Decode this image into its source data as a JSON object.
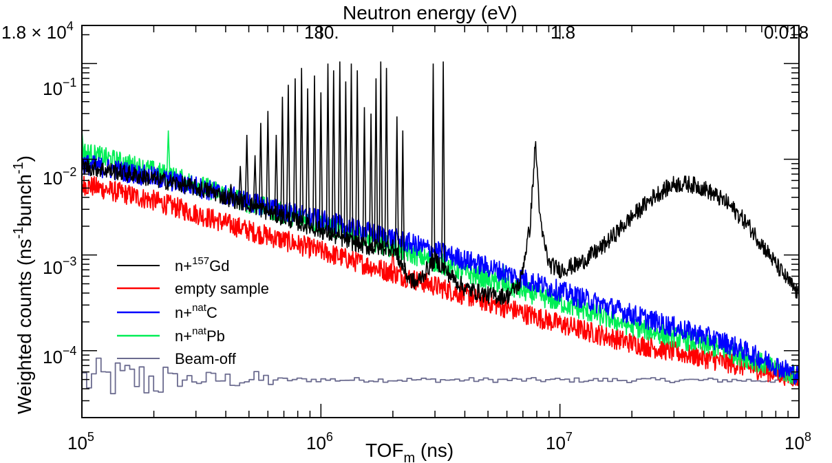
{
  "chart_data": {
    "type": "line",
    "x_scale": "log",
    "y_scale": "log",
    "xlim": [
      100000,
      100000000
    ],
    "ylim": [
      2e-05,
      0.25
    ],
    "grid": false,
    "legend_placement": "lower-left",
    "xlabel": {
      "main": "TOF",
      "sub": "m",
      "rest": " (ns)"
    },
    "ylabel": {
      "p1": "Weighted counts (ns",
      "s1": "-1",
      "p2": "bunch",
      "s2": "-1",
      "p3": ")"
    },
    "top_axis_title": "Neutron energy (eV)",
    "x_ticks": [
      {
        "value": 100000,
        "base": "10",
        "exp": "5"
      },
      {
        "value": 1000000,
        "base": "10",
        "exp": "6"
      },
      {
        "value": 10000000,
        "base": "10",
        "exp": "7"
      },
      {
        "value": 100000000,
        "base": "10",
        "exp": "8"
      }
    ],
    "y_ticks": [
      {
        "value": 0.0001,
        "base": "10",
        "exp": "−4"
      },
      {
        "value": 0.001,
        "base": "10",
        "exp": "−3"
      },
      {
        "value": 0.01,
        "base": "10",
        "exp": "−2"
      },
      {
        "value": 0.1,
        "base": "10",
        "exp": "−1"
      }
    ],
    "top_ticks": [
      {
        "energy_eV": 18000,
        "label": "1.8 × 10",
        "exp": "4"
      },
      {
        "energy_eV": 180,
        "label": "180.",
        "exp": ""
      },
      {
        "energy_eV": 1.8,
        "label": "1.8",
        "exp": ""
      },
      {
        "energy_eV": 0.018,
        "label": "0.018",
        "exp": ""
      }
    ],
    "series": [
      {
        "name": {
          "pre": "n+",
          "sup": "157",
          "post": "Gd"
        },
        "color": "#000000",
        "points": [
          [
            100000,
            0.0085
          ],
          [
            150000,
            0.0072
          ],
          [
            200000,
            0.0062
          ],
          [
            250000,
            0.0056
          ],
          [
            300000,
            0.005
          ],
          [
            350000,
            0.0046
          ],
          [
            400000,
            0.004
          ],
          [
            500000,
            0.0034
          ],
          [
            600000,
            0.0028
          ],
          [
            800000,
            0.0022
          ],
          [
            1000000,
            0.0018
          ],
          [
            1300000,
            0.0014
          ],
          [
            1600000,
            0.0012
          ],
          [
            2000000,
            0.0012
          ],
          [
            2300000,
            0.0006
          ],
          [
            2500000,
            0.0005
          ],
          [
            3000000,
            0.0009
          ],
          [
            3500000,
            0.0006
          ],
          [
            4000000,
            0.00045
          ],
          [
            5000000,
            0.00038
          ],
          [
            6000000,
            0.00037
          ],
          [
            6800000,
            0.0005
          ],
          [
            7500000,
            0.002
          ],
          [
            7900000,
            0.015
          ],
          [
            8300000,
            0.002
          ],
          [
            9000000,
            0.0008
          ],
          [
            10000000,
            0.0007
          ],
          [
            12000000,
            0.0008
          ],
          [
            15000000,
            0.0012
          ],
          [
            20000000,
            0.0025
          ],
          [
            25000000,
            0.0042
          ],
          [
            30000000,
            0.0055
          ],
          [
            35000000,
            0.0055
          ],
          [
            40000000,
            0.005
          ],
          [
            50000000,
            0.0035
          ],
          [
            60000000,
            0.0022
          ],
          [
            70000000,
            0.0013
          ],
          [
            80000000,
            0.0008
          ],
          [
            100000000,
            0.00038
          ]
        ],
        "peaks": [
          [
            420000,
            0.0055
          ],
          [
            460000,
            0.0085
          ],
          [
            490000,
            0.018
          ],
          [
            530000,
            0.011
          ],
          [
            560000,
            0.024
          ],
          [
            600000,
            0.032
          ],
          [
            650000,
            0.018
          ],
          [
            690000,
            0.045
          ],
          [
            730000,
            0.06
          ],
          [
            780000,
            0.07
          ],
          [
            830000,
            0.09
          ],
          [
            880000,
            0.055
          ],
          [
            940000,
            0.075
          ],
          [
            1000000,
            0.05
          ],
          [
            1070000,
            0.1
          ],
          [
            1130000,
            0.085
          ],
          [
            1200000,
            0.105
          ],
          [
            1270000,
            0.065
          ],
          [
            1340000,
            0.1
          ],
          [
            1420000,
            0.085
          ],
          [
            1520000,
            0.035
          ],
          [
            1620000,
            0.03
          ],
          [
            1700000,
            0.07
          ],
          [
            1780000,
            0.105
          ],
          [
            1880000,
            0.09
          ],
          [
            2080000,
            0.028
          ],
          [
            2200000,
            0.02
          ],
          [
            2950000,
            0.1
          ],
          [
            3250000,
            0.105
          ]
        ]
      },
      {
        "name": {
          "pre": "empty sample",
          "sup": "",
          "post": ""
        },
        "color": "#ff0000",
        "points": [
          [
            100000,
            0.0055
          ],
          [
            200000,
            0.0037
          ],
          [
            300000,
            0.0027
          ],
          [
            500000,
            0.0018
          ],
          [
            1000000,
            0.0011
          ],
          [
            2000000,
            0.00065
          ],
          [
            5000000,
            0.00032
          ],
          [
            10000000,
            0.00019
          ],
          [
            20000000,
            0.00012
          ],
          [
            50000000,
            7.5e-05
          ],
          [
            100000000,
            5.2e-05
          ]
        ],
        "spikes": [
          [
            2000000,
            0.0012
          ]
        ]
      },
      {
        "name": {
          "pre": "n+",
          "sup": "nat",
          "post": "C"
        },
        "color": "#0000ff",
        "points": [
          [
            100000,
            0.009
          ],
          [
            200000,
            0.0065
          ],
          [
            300000,
            0.0052
          ],
          [
            500000,
            0.0036
          ],
          [
            1000000,
            0.0023
          ],
          [
            2000000,
            0.0015
          ],
          [
            5000000,
            0.00075
          ],
          [
            10000000,
            0.00042
          ],
          [
            20000000,
            0.00024
          ],
          [
            50000000,
            0.00012
          ],
          [
            100000000,
            5.5e-05
          ]
        ]
      },
      {
        "name": {
          "pre": "n+",
          "sup": "nat",
          "post": "Pb"
        },
        "color": "#00ee55",
        "points": [
          [
            100000,
            0.012
          ],
          [
            200000,
            0.0075
          ],
          [
            300000,
            0.0055
          ],
          [
            500000,
            0.0035
          ],
          [
            1000000,
            0.0021
          ],
          [
            2000000,
            0.0012
          ],
          [
            5000000,
            0.00055
          ],
          [
            10000000,
            0.00032
          ],
          [
            20000000,
            0.00018
          ],
          [
            50000000,
            0.0001
          ],
          [
            100000000,
            5.3e-05
          ]
        ],
        "spikes": [
          [
            100000,
            0.02
          ],
          [
            230000,
            0.02
          ],
          [
            5800000,
            0.0008
          ]
        ]
      },
      {
        "name": {
          "pre": "Beam-off",
          "sup": "",
          "post": ""
        },
        "color": "#6b6b8f",
        "points": [
          [
            100000,
            5e-05
          ],
          [
            100000000,
            4.9e-05
          ]
        ]
      }
    ]
  }
}
